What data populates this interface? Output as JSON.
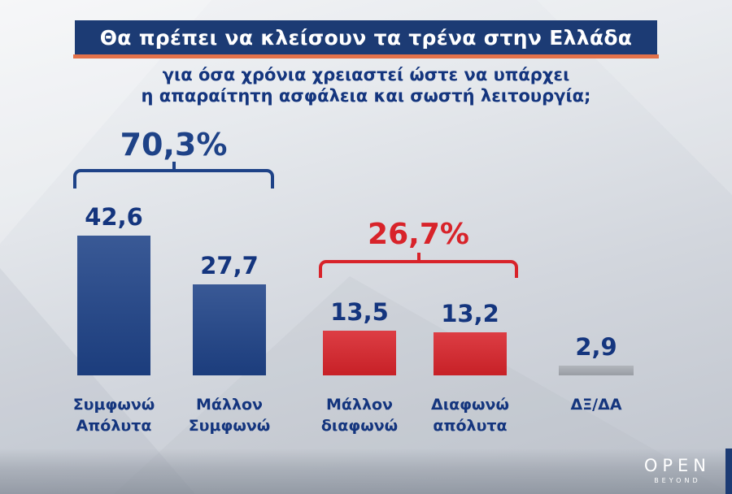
{
  "header": {
    "title": "Θα πρέπει να κλείσουν τα τρένα στην Ελλάδα",
    "subtitle_line1": "για όσα χρόνια χρειαστεί ώστε να υπάρχει",
    "subtitle_line2": "η απαραίτητη ασφάλεια και σωστή λειτουργία;",
    "title_bar_color": "#1c3b74",
    "accent_color": "#e4724a"
  },
  "chart_data": {
    "type": "bar",
    "title": "Θα πρέπει να κλείσουν τα τρένα στην Ελλάδα για όσα χρόνια χρειαστεί ώστε να υπάρχει η απαραίτητη ασφάλεια και σωστή λειτουργία;",
    "categories": [
      "Συμφωνώ Απόλυτα",
      "Μάλλον Συμφωνώ",
      "Μάλλον διαφωνώ",
      "Διαφωνώ απόλυτα",
      "ΔΞ/ΔΑ"
    ],
    "values": [
      42.6,
      27.7,
      13.5,
      13.2,
      2.9
    ],
    "ylim": [
      0,
      45
    ],
    "grid": false,
    "legend": "none",
    "bars": [
      {
        "value": 42.6,
        "label": "42,6",
        "cat_line1": "Συμφωνώ",
        "cat_line2": "Απόλυτα",
        "color": "#1e4287"
      },
      {
        "value": 27.7,
        "label": "27,7",
        "cat_line1": "Μάλλον",
        "cat_line2": "Συμφωνώ",
        "color": "#1e4287"
      },
      {
        "value": 13.5,
        "label": "13,5",
        "cat_line1": "Μάλλον",
        "cat_line2": "διαφωνώ",
        "color": "#d8232a"
      },
      {
        "value": 13.2,
        "label": "13,2",
        "cat_line1": "Διαφωνώ",
        "cat_line2": "απόλυτα",
        "color": "#d8232a"
      },
      {
        "value": 2.9,
        "label": "2,9",
        "cat_line1": "ΔΞ/ΔΑ",
        "cat_line2": "",
        "color": "#a6abb2"
      }
    ],
    "groups": [
      {
        "label": "70,3%",
        "color": "#1e4287",
        "spans": [
          "Συμφωνώ Απόλυτα",
          "Μάλλον Συμφωνώ"
        ]
      },
      {
        "label": "26,7%",
        "color": "#d8232a",
        "spans": [
          "Μάλλον διαφωνώ",
          "Διαφωνώ απόλυτα"
        ]
      }
    ]
  },
  "branding": {
    "channel": "OPEN",
    "tagline": "BEYOND"
  }
}
